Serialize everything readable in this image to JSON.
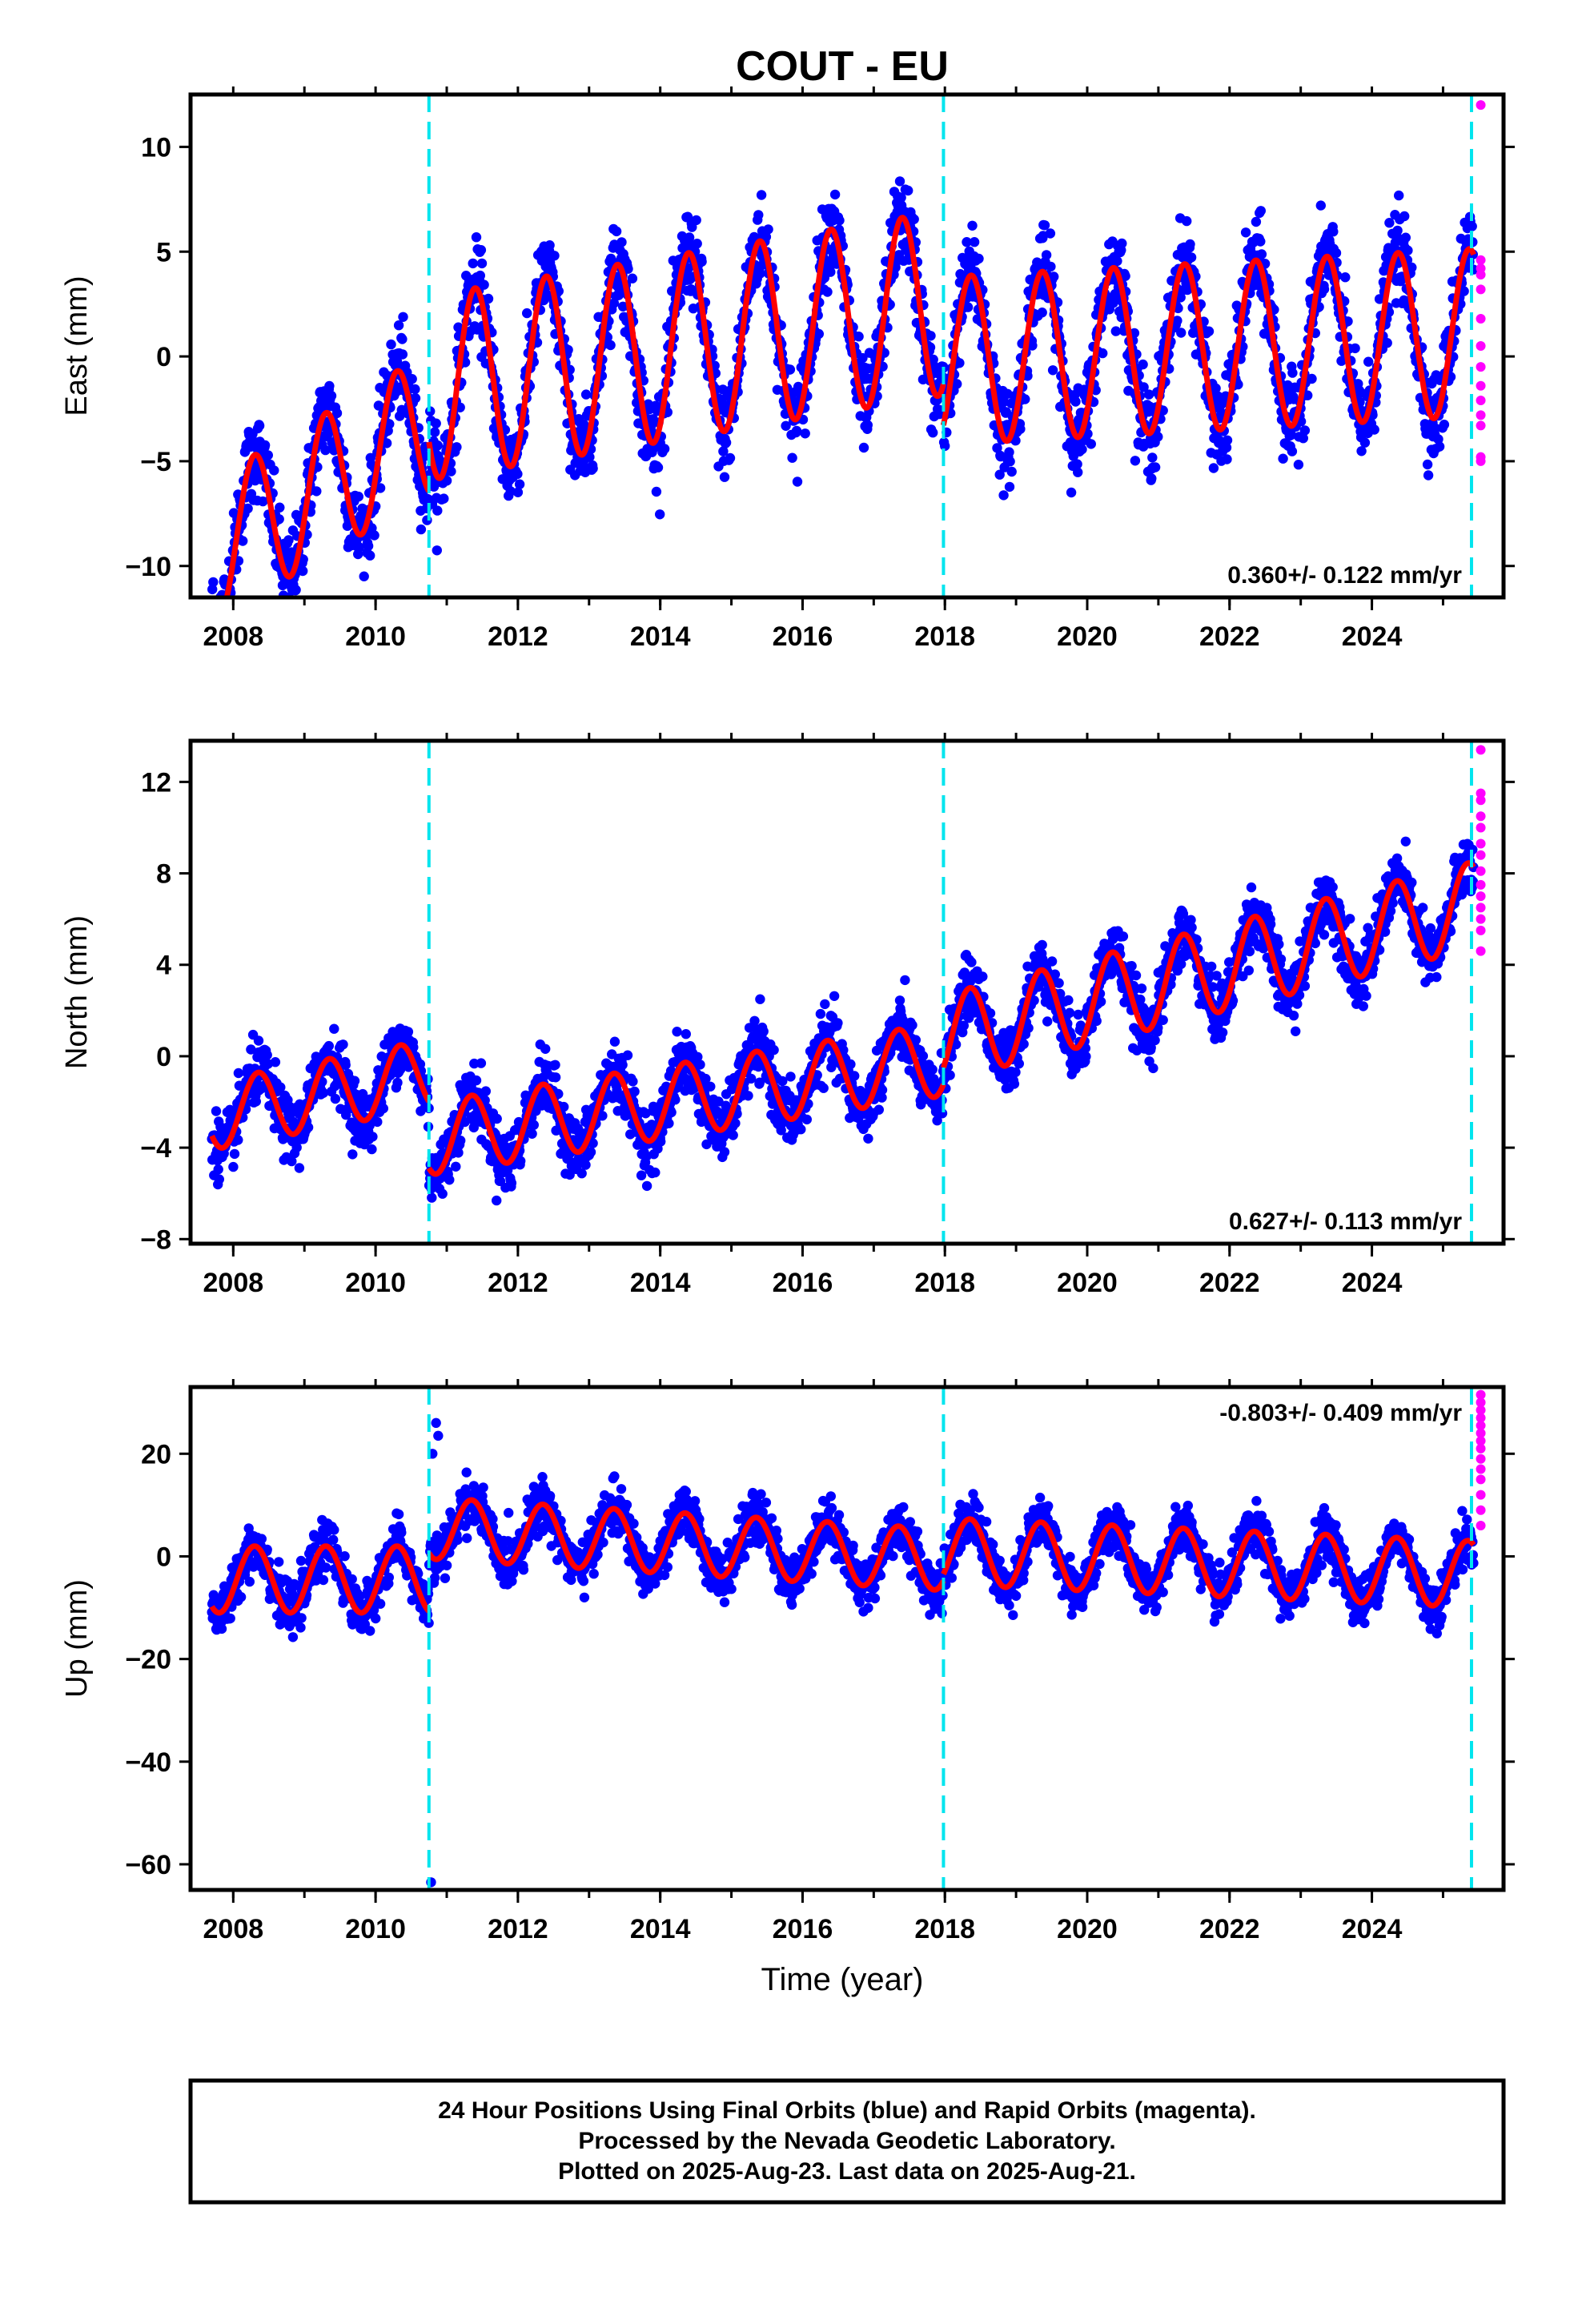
{
  "figure": {
    "title": "COUT - EU",
    "xlabel": "Time (year)",
    "footnote": [
      "24 Hour Positions Using Final Orbits (blue) and Rapid Orbits (magenta).",
      "Processed by the Nevada Geodetic Laboratory.",
      "Plotted on 2025-Aug-23. Last data on 2025-Aug-21."
    ],
    "colors": {
      "final_orbits": "#0000ff",
      "rapid_orbits": "#ff00ff",
      "model_fit": "#ff0000",
      "equipment_change": "#00e5ee"
    }
  },
  "chart_data": [
    {
      "type": "scatter",
      "ylabel": "East (mm)",
      "rate_label": "0.360+/- 0.122 mm/yr",
      "xlim": [
        2007.4,
        2025.85
      ],
      "ylim": [
        -11.5,
        12.5
      ],
      "xticks": [
        "2008",
        "2010",
        "2012",
        "2014",
        "2016",
        "2018",
        "2020",
        "2022",
        "2024"
      ],
      "yticks": [
        "-10",
        "-5",
        "0",
        "5",
        "10"
      ],
      "breaks": [
        2010.75,
        2017.98,
        2025.4
      ],
      "series": [
        {
          "kind": "final",
          "x_start": 2007.7,
          "x_end": 2025.43,
          "pieces": [
            {
              "from": 2007.7,
              "to": 2010.75,
              "offset": -9.3,
              "rate": 2.0,
              "amp": 3.4,
              "phase": 0.05
            },
            {
              "from": 2010.75,
              "to": 2017.98,
              "offset": -1.5,
              "rate": 0.56,
              "amp": 4.4,
              "phase": 0.15
            },
            {
              "from": 2017.98,
              "to": 2025.43,
              "offset": -0.2,
              "rate": 0.18,
              "amp": 4.0,
              "phase": 0.12
            }
          ],
          "noise": 1.9
        },
        {
          "kind": "rapid",
          "x": 2025.53,
          "values": [
            12.0,
            4.6,
            4.2,
            3.9,
            3.2,
            1.8,
            0.5,
            -0.5,
            -1.4,
            -2.1,
            -2.8,
            -3.3,
            -4.8,
            -5.0
          ]
        }
      ]
    },
    {
      "type": "scatter",
      "ylabel": "North (mm)",
      "rate_label": "0.627+/- 0.113 mm/yr",
      "xlim": [
        2007.4,
        2025.85
      ],
      "ylim": [
        -8.2,
        13.8
      ],
      "xticks": [
        "2008",
        "2010",
        "2012",
        "2014",
        "2016",
        "2018",
        "2020",
        "2022",
        "2024"
      ],
      "yticks": [
        "-8",
        "-4",
        "0",
        "4",
        "8",
        "12"
      ],
      "breaks": [
        2010.75,
        2017.98,
        2025.4
      ],
      "series": [
        {
          "kind": "final",
          "x_start": 2007.7,
          "x_end": 2025.43,
          "pieces": [
            {
              "from": 2007.7,
              "to": 2010.75,
              "offset": -2.6,
              "rate": 0.6,
              "amp": 1.5,
              "phase": 0.1
            },
            {
              "from": 2010.75,
              "to": 2017.98,
              "offset": -3.6,
              "rate": 0.48,
              "amp": 1.6,
              "phase": 0.1
            },
            {
              "from": 2017.98,
              "to": 2025.43,
              "offset": 0.8,
              "rate": 0.78,
              "amp": 1.9,
              "phase": 0.1
            }
          ],
          "noise": 1.2
        },
        {
          "kind": "rapid",
          "x": 2025.53,
          "values": [
            13.4,
            11.5,
            11.2,
            10.5,
            10.0,
            9.3,
            8.8,
            8.1,
            7.5,
            7.0,
            6.5,
            6.0,
            5.5,
            4.6
          ]
        }
      ]
    },
    {
      "type": "scatter",
      "ylabel": "Up (mm)",
      "rate_label": "-0.803+/- 0.409 mm/yr",
      "xlim": [
        2007.4,
        2025.85
      ],
      "ylim": [
        -65,
        33
      ],
      "xticks": [
        "2008",
        "2010",
        "2012",
        "2014",
        "2016",
        "2018",
        "2020",
        "2022",
        "2024"
      ],
      "yticks": [
        "-60",
        "-40",
        "-20",
        "0",
        "20"
      ],
      "breaks": [
        2010.75,
        2017.98,
        2025.4
      ],
      "outliers": [
        [
          2010.78,
          -63.5
        ],
        [
          2010.85,
          26.0
        ],
        [
          2010.88,
          23.5
        ],
        [
          2010.8,
          20.0
        ]
      ],
      "series": [
        {
          "kind": "final",
          "x_start": 2007.7,
          "x_end": 2025.43,
          "pieces": [
            {
              "from": 2007.7,
              "to": 2010.75,
              "offset": -4.5,
              "rate": 0.0,
              "amp": 6.5,
              "phase": 0.05
            },
            {
              "from": 2010.75,
              "to": 2017.98,
              "offset": 5.5,
              "rate": -0.85,
              "amp": 6.0,
              "phase": 0.1
            },
            {
              "from": 2017.98,
              "to": 2025.43,
              "offset": 1.0,
              "rate": -0.6,
              "amp": 6.5,
              "phase": 0.1
            }
          ],
          "noise": 4.2
        },
        {
          "kind": "rapid",
          "x": 2025.53,
          "values": [
            31.5,
            30.0,
            28.5,
            27.0,
            25.5,
            24.0,
            22.5,
            21.0,
            19.0,
            17.0,
            15.0,
            12.0,
            9.0,
            6.0
          ]
        }
      ]
    }
  ]
}
